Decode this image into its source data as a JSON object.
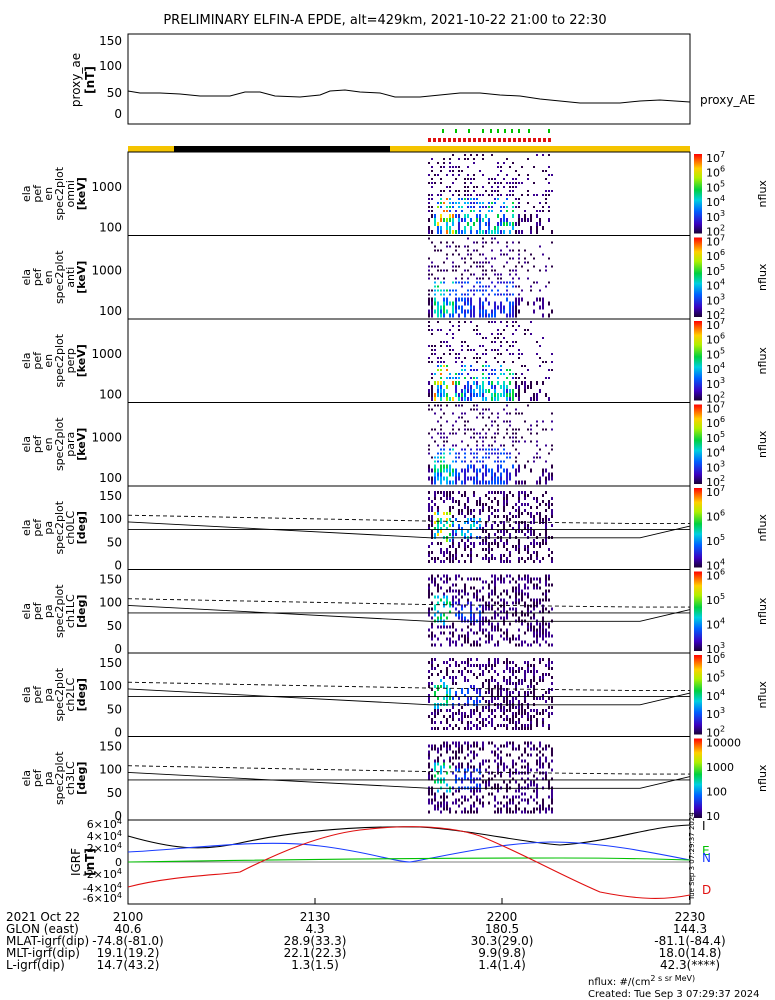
{
  "title": "PRELIMINARY ELFIN-A EPDE, alt=429km, 2021-10-22 21:00 to 22:30",
  "proxy_ae": {
    "ylabel": "proxy_ae",
    "unit": "[nT]",
    "legend": "proxy_AE",
    "ticks": [
      "0",
      "50",
      "100",
      "150"
    ]
  },
  "spectra": [
    {
      "ylabel": [
        "ela",
        "pef",
        "en",
        "spec2plot",
        "omni"
      ],
      "unit": "[keV]",
      "ticks": [
        "100",
        "1000"
      ],
      "cbar_ticks": [
        "10^2",
        "10^3",
        "10^4",
        "10^5",
        "10^6",
        "10^7"
      ],
      "cbar_label": "nflux"
    },
    {
      "ylabel": [
        "ela",
        "pef",
        "en",
        "spec2plot",
        "anti"
      ],
      "unit": "[keV]",
      "ticks": [
        "100",
        "1000"
      ],
      "cbar_ticks": [
        "10^2",
        "10^3",
        "10^4",
        "10^5",
        "10^6",
        "10^7"
      ],
      "cbar_label": "nflux"
    },
    {
      "ylabel": [
        "ela",
        "pef",
        "en",
        "spec2plot",
        "perp"
      ],
      "unit": "[keV]",
      "ticks": [
        "100",
        "1000"
      ],
      "cbar_ticks": [
        "10^2",
        "10^3",
        "10^4",
        "10^5",
        "10^6",
        "10^7"
      ],
      "cbar_label": "nflux"
    },
    {
      "ylabel": [
        "ela",
        "pef",
        "en",
        "spec2plot",
        "para"
      ],
      "unit": "[keV]",
      "ticks": [
        "100",
        "1000"
      ],
      "cbar_ticks": [
        "10^2",
        "10^3",
        "10^4",
        "10^5",
        "10^6",
        "10^7"
      ],
      "cbar_label": "nflux"
    }
  ],
  "pitch": [
    {
      "ylabel": [
        "ela",
        "pef",
        "pa",
        "spec2plot",
        "ch0LC"
      ],
      "unit": "[deg]",
      "ticks": [
        "0",
        "50",
        "100",
        "150"
      ],
      "cbar_ticks": [
        "10^4",
        "10^5",
        "10^6",
        "10^7"
      ],
      "cbar_label": "nflux"
    },
    {
      "ylabel": [
        "ela",
        "pef",
        "pa",
        "spec2plot",
        "ch1LC"
      ],
      "unit": "[deg]",
      "ticks": [
        "0",
        "50",
        "100",
        "150"
      ],
      "cbar_ticks": [
        "10^3",
        "10^4",
        "10^5",
        "10^6"
      ],
      "cbar_label": "nflux"
    },
    {
      "ylabel": [
        "ela",
        "pef",
        "pa",
        "spec2plot",
        "ch2LC"
      ],
      "unit": "[deg]",
      "ticks": [
        "0",
        "50",
        "100",
        "150"
      ],
      "cbar_ticks": [
        "10^2",
        "10^3",
        "10^4",
        "10^5",
        "10^6"
      ],
      "cbar_label": "nflux"
    },
    {
      "ylabel": [
        "ela",
        "pef",
        "pa",
        "spec2plot",
        "ch3LC"
      ],
      "unit": "[deg]",
      "ticks": [
        "0",
        "50",
        "100",
        "150"
      ],
      "cbar_ticks": [
        "10",
        "100",
        "1000",
        "10000"
      ],
      "cbar_label": "nflux"
    }
  ],
  "igrf": {
    "ylabel": "IGRF",
    "unit": "[nT]",
    "ticks": [
      "-6×10^4",
      "-4×10^4",
      "-2×10^4",
      "0",
      "2×10^4",
      "4×10^4",
      "6×10^4"
    ],
    "legend": [
      {
        "name": "I",
        "color": "#000000"
      },
      {
        "name": "E",
        "color": "#00c000"
      },
      {
        "name": "N",
        "color": "#1a3cff"
      },
      {
        "name": "D",
        "color": "#e01010"
      }
    ],
    "side_text": "Tue Sep  3 07:29:37 2024"
  },
  "xaxis": {
    "rows": [
      {
        "label": "2021 Oct 22",
        "values": [
          "2100",
          "2130",
          "2200",
          "2230"
        ]
      },
      {
        "label": "GLON (east)",
        "values": [
          "40.6",
          "4.3",
          "180.5",
          "144.3"
        ]
      },
      {
        "label": "MLAT-igrf(dip)",
        "values": [
          "-74.8(-81.0)",
          "28.9(33.3)",
          "30.3(29.0)",
          "-81.1(-84.4)"
        ]
      },
      {
        "label": "MLT-igrf(dip)",
        "values": [
          "19.1(19.2)",
          "22.1(22.3)",
          "9.9(9.8)",
          "18.0(14.8)"
        ]
      },
      {
        "label": "L-igrf(dip)",
        "values": [
          "14.7(43.2)",
          "1.3(1.5)",
          "1.4(1.4)",
          "42.3(****)"
        ]
      }
    ]
  },
  "footer": {
    "units": "nflux: #/(cm^2 s sr MeV)",
    "created": "Created: Tue Sep  3 07:29:37 2024"
  },
  "chart_data": {
    "type": "heatmap",
    "time_range": [
      "2021-10-22 21:00",
      "2021-10-22 22:30"
    ],
    "proxy_ae_series": [
      {
        "t": "21:00",
        "v": 45
      },
      {
        "t": "21:10",
        "v": 40
      },
      {
        "t": "21:20",
        "v": 38
      },
      {
        "t": "21:30",
        "v": 35
      },
      {
        "t": "21:40",
        "v": 50
      },
      {
        "t": "21:50",
        "v": 38
      },
      {
        "t": "22:00",
        "v": 40
      },
      {
        "t": "22:10",
        "v": 22
      },
      {
        "t": "22:20",
        "v": 28
      },
      {
        "t": "22:30",
        "v": 22
      }
    ],
    "ae_ylim": [
      0,
      150
    ],
    "energy_ylim_keV": [
      60,
      7000
    ],
    "pitch_ylim_deg": [
      0,
      180
    ],
    "igrf_ylim": [
      -60000,
      60000
    ],
    "science_zone": [
      "21:56",
      "22:10"
    ]
  }
}
